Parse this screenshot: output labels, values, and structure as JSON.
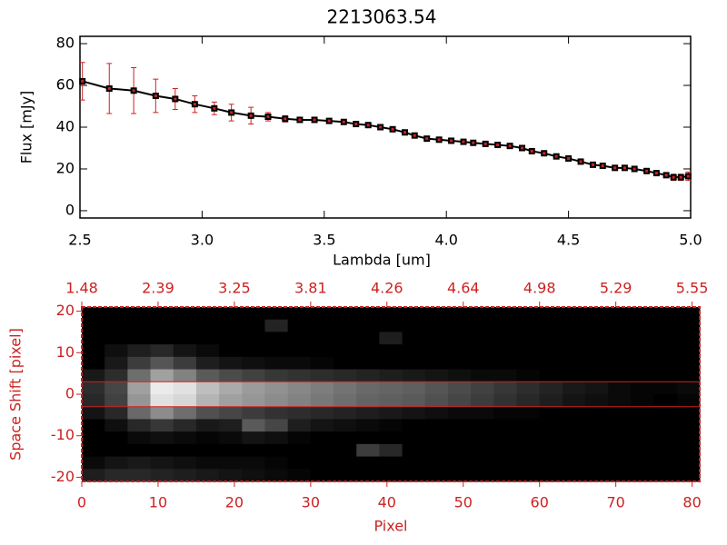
{
  "chart_data": [
    {
      "type": "line",
      "title": "2213063.54",
      "xlabel": "Lambda [um]",
      "ylabel": "Flux [mJy]",
      "xlim": [
        2.5,
        5.0
      ],
      "xticks": [
        2.5,
        {
          "value": 3,
          "label": "3.0"
        },
        3.5,
        {
          "value": 4,
          "label": "4.0"
        },
        4.5,
        {
          "value": 5,
          "label": "5.0"
        }
      ],
      "ylim": [
        -3.5,
        83.5
      ],
      "yticks": [
        0,
        20,
        40,
        60,
        80
      ],
      "x": [
        2.51,
        2.62,
        2.72,
        2.81,
        2.89,
        2.97,
        3.05,
        3.12,
        3.2,
        3.27,
        3.34,
        3.4,
        3.46,
        3.52,
        3.58,
        3.63,
        3.68,
        3.73,
        3.78,
        3.83,
        3.87,
        3.92,
        3.97,
        4.02,
        4.07,
        4.11,
        4.16,
        4.21,
        4.26,
        4.31,
        4.35,
        4.4,
        4.45,
        4.5,
        4.55,
        4.6,
        4.64,
        4.69,
        4.73,
        4.77,
        4.82,
        4.86,
        4.9,
        4.93,
        4.96,
        4.99
      ],
      "series": [
        {
          "color": "#000000",
          "error_color": "#cc2222",
          "values": [
            62,
            58.5,
            57.5,
            55,
            53.5,
            51,
            49,
            47,
            45.5,
            45,
            44,
            43.5,
            43.5,
            43,
            42.5,
            41.5,
            41,
            40,
            39,
            37.5,
            36,
            34.5,
            34,
            33.5,
            33,
            32.5,
            32,
            31.5,
            31,
            30,
            28.5,
            27.5,
            26,
            25,
            23.5,
            22,
            21.5,
            20.5,
            20.5,
            20,
            19,
            18,
            17,
            16,
            16,
            16.5
          ],
          "errors": [
            9,
            12,
            11,
            8,
            5,
            4,
            3,
            4,
            4,
            2,
            1.5,
            1,
            1,
            1,
            1,
            1,
            1,
            1,
            1,
            1,
            1,
            1,
            1,
            1,
            1,
            1,
            1,
            1,
            1,
            1,
            1,
            1,
            1,
            1,
            1,
            1,
            1,
            1,
            1,
            1,
            1,
            1,
            1,
            1.5,
            1.5,
            2
          ]
        }
      ]
    },
    {
      "type": "heatmap",
      "xlabel": "Pixel",
      "ylabel": "Space Shift [pixel]",
      "color": "#cc2222",
      "xlim": [
        0,
        81
      ],
      "xticks": [
        0,
        10,
        20,
        30,
        40,
        50,
        60,
        70,
        80
      ],
      "x2ticks": [
        {
          "value": 0,
          "label": "1.48"
        },
        {
          "value": 10,
          "label": "2.39"
        },
        {
          "value": 20,
          "label": "3.25"
        },
        {
          "value": 30,
          "label": "3.81"
        },
        {
          "value": 40,
          "label": "4.26"
        },
        {
          "value": 50,
          "label": "4.64"
        },
        {
          "value": 60,
          "label": "4.98"
        },
        {
          "value": 70,
          "label": "5.29"
        },
        {
          "value": 80,
          "label": "5.55"
        }
      ],
      "ylim": [
        -21,
        21
      ],
      "yticks": [
        -20,
        -10,
        0,
        10,
        20
      ],
      "hlines": [
        3,
        -3
      ],
      "z": [
        [
          0,
          0,
          0,
          0,
          0,
          0,
          0,
          0,
          0,
          0,
          0,
          0,
          0,
          0,
          0,
          0,
          0,
          0,
          0,
          0,
          0,
          0,
          0,
          0,
          0,
          0,
          0
        ],
        [
          0,
          0,
          0,
          0,
          0,
          0,
          0,
          0,
          35,
          0,
          0,
          0,
          0,
          0,
          0,
          0,
          0,
          0,
          0,
          0,
          0,
          0,
          0,
          0,
          0,
          0,
          0
        ],
        [
          0,
          0,
          0,
          0,
          0,
          0,
          0,
          0,
          0,
          0,
          0,
          0,
          0,
          30,
          0,
          0,
          0,
          0,
          0,
          0,
          0,
          0,
          0,
          0,
          0,
          0,
          0
        ],
        [
          0,
          15,
          30,
          40,
          20,
          10,
          0,
          0,
          0,
          0,
          0,
          0,
          0,
          0,
          0,
          0,
          0,
          0,
          0,
          0,
          0,
          0,
          0,
          0,
          0,
          0,
          0
        ],
        [
          0,
          25,
          60,
          85,
          60,
          30,
          20,
          15,
          10,
          10,
          5,
          0,
          0,
          0,
          0,
          0,
          0,
          0,
          0,
          0,
          0,
          0,
          0,
          0,
          0,
          0,
          0
        ],
        [
          25,
          45,
          110,
          160,
          130,
          90,
          75,
          65,
          55,
          50,
          45,
          40,
          35,
          30,
          25,
          20,
          15,
          10,
          10,
          5,
          0,
          0,
          0,
          0,
          0,
          0,
          0
        ],
        [
          45,
          70,
          160,
          235,
          225,
          190,
          170,
          155,
          145,
          135,
          125,
          115,
          105,
          100,
          95,
          85,
          75,
          65,
          55,
          45,
          35,
          25,
          20,
          10,
          5,
          5,
          10
        ],
        [
          40,
          65,
          150,
          225,
          215,
          180,
          160,
          150,
          140,
          130,
          120,
          110,
          100,
          95,
          90,
          80,
          70,
          60,
          50,
          40,
          30,
          20,
          15,
          10,
          5,
          0,
          5
        ],
        [
          20,
          40,
          105,
          140,
          110,
          80,
          70,
          60,
          50,
          45,
          40,
          35,
          30,
          25,
          20,
          15,
          10,
          10,
          5,
          5,
          0,
          0,
          0,
          0,
          0,
          0,
          0
        ],
        [
          0,
          15,
          40,
          55,
          40,
          25,
          30,
          90,
          70,
          30,
          20,
          15,
          10,
          5,
          0,
          0,
          0,
          0,
          0,
          0,
          0,
          0,
          0,
          0,
          0,
          0,
          0
        ],
        [
          0,
          0,
          10,
          15,
          10,
          5,
          10,
          20,
          15,
          5,
          0,
          0,
          0,
          0,
          0,
          0,
          0,
          0,
          0,
          0,
          0,
          0,
          0,
          0,
          0,
          0,
          0
        ],
        [
          0,
          0,
          0,
          0,
          0,
          0,
          0,
          0,
          0,
          0,
          0,
          0,
          60,
          40,
          0,
          0,
          0,
          0,
          0,
          0,
          0,
          0,
          0,
          0,
          0,
          0,
          0
        ],
        [
          10,
          20,
          25,
          20,
          15,
          10,
          10,
          10,
          5,
          0,
          0,
          0,
          0,
          0,
          0,
          0,
          0,
          0,
          0,
          0,
          0,
          0,
          0,
          0,
          0,
          0,
          0
        ],
        [
          30,
          40,
          40,
          35,
          30,
          25,
          20,
          15,
          10,
          5,
          0,
          0,
          0,
          0,
          0,
          0,
          0,
          0,
          0,
          0,
          0,
          0,
          0,
          0,
          0,
          0,
          0
        ]
      ]
    }
  ]
}
